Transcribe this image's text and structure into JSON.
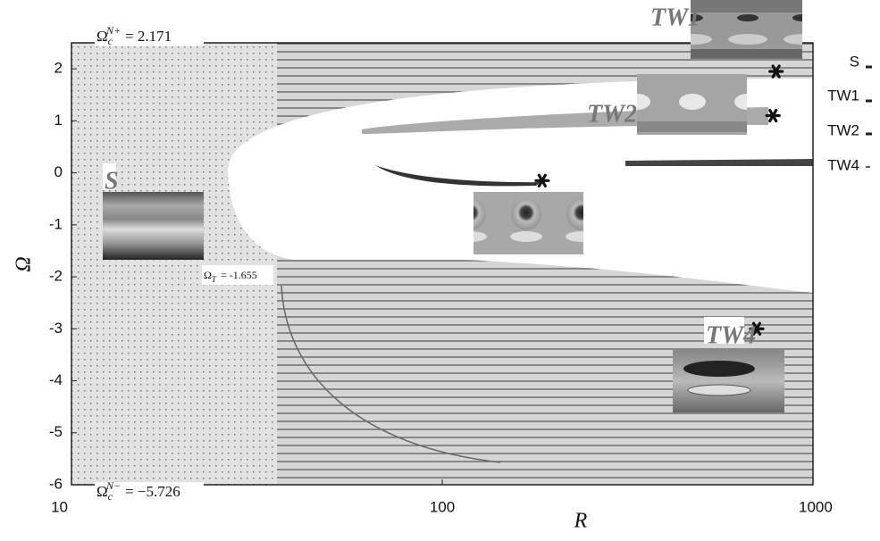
{
  "chart_data": {
    "type": "scatter",
    "x_label": "R",
    "y_label": "Ω",
    "x": [
      795,
      780,
      186,
      705
    ],
    "values": [
      1.95,
      1.1,
      -0.15,
      -3.0
    ],
    "color": "#111111",
    "xlim": [
      10,
      1000
    ],
    "xticks": [
      10,
      100,
      1000
    ],
    "x_log": true,
    "ylim": [
      -6,
      2.5
    ],
    "yticks": [
      -6,
      -5,
      -4,
      -3,
      -2,
      -1,
      0,
      1,
      2
    ],
    "critical_labels": [
      {
        "symbol": "Ω",
        "sub": "c",
        "sup": "N+",
        "text": "= 2.171"
      },
      {
        "symbol": "Ω",
        "sub": "c",
        "sup": "N−",
        "text": "= −5.726"
      },
      {
        "symbol": "Ω",
        "sub": "T",
        "sup": "",
        "text": "= -1.655"
      }
    ],
    "image_labels": [
      "TW1",
      "TW2",
      "S",
      "TW4"
    ],
    "legend_labels": [
      "S",
      "TW1",
      "TW2",
      "TW4"
    ]
  }
}
